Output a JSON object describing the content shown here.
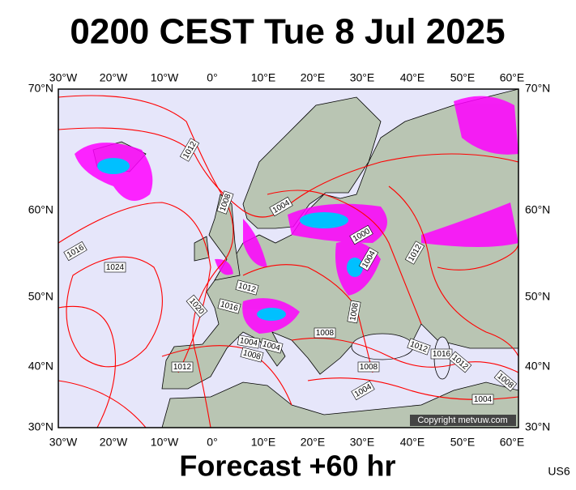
{
  "title": "0200 CEST Tue 8 Jul 2025",
  "footer": "Forecast +60 hr",
  "code": "US6",
  "copyright": "Copyright metvuw.com",
  "longitude_labels": [
    "30°W",
    "20°W",
    "10°W",
    "0°",
    "10°E",
    "20°E",
    "30°E",
    "40°E",
    "50°E",
    "60°E"
  ],
  "latitude_labels": [
    "70°N",
    "60°N",
    "50°N",
    "40°N",
    "30°N"
  ],
  "isobar_labels": [
    "1012",
    "1008",
    "1004",
    "1000",
    "1004",
    "1012",
    "1016",
    "1024",
    "1012",
    "1016",
    "1020",
    "1008",
    "1008",
    "1004",
    "1004",
    "1008",
    "1012",
    "1012",
    "1016",
    "1012",
    "1008",
    "1004",
    "1008",
    "1004"
  ]
}
